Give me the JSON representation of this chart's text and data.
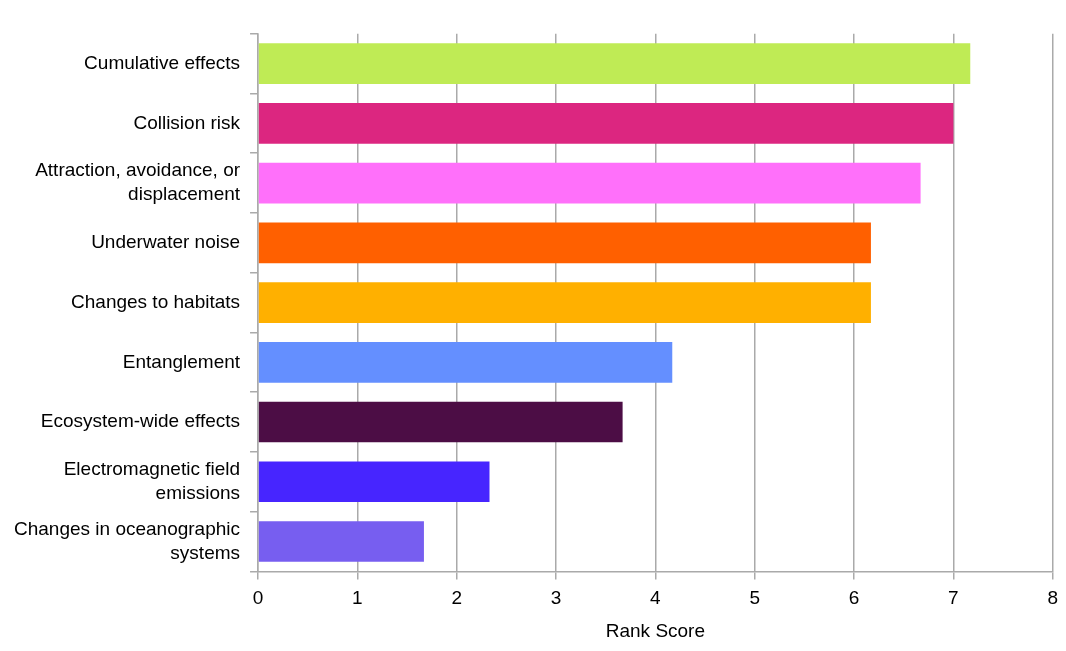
{
  "chart_data": {
    "type": "bar",
    "orientation": "horizontal",
    "xlabel": "Rank Score",
    "categories": [
      "Cumulative effects",
      "Collision risk",
      "Attraction, avoidance, or displacement",
      "Underwater noise",
      "Changes to habitats",
      "Entanglement",
      "Ecosystem-wide effects",
      "Electromagnetic field emissions",
      "Changes in oceanographic systems"
    ],
    "values": [
      7.17,
      7.0,
      6.67,
      6.17,
      6.17,
      4.17,
      3.67,
      2.33,
      1.67
    ],
    "colors": [
      "#bfeb55",
      "#dc2680",
      "#ff70fa",
      "#ff6000",
      "#ffb000",
      "#648fff",
      "#4c0d45",
      "#4725ff",
      "#775ef0"
    ],
    "xlim": [
      0,
      8
    ],
    "xticks": [
      0,
      1,
      2,
      3,
      4,
      5,
      6,
      7,
      8
    ],
    "grid": "x",
    "legend": false
  }
}
